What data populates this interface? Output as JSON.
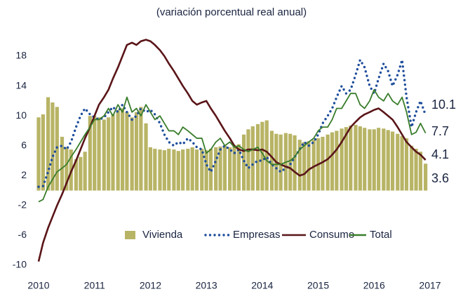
{
  "chart_data": {
    "type": "bar-line",
    "subtitle": "(variación porcentual real anual)",
    "x": [
      2010.0,
      2010.08,
      2010.17,
      2010.25,
      2010.33,
      2010.42,
      2010.5,
      2010.58,
      2010.67,
      2010.75,
      2010.83,
      2010.92,
      2011.0,
      2011.08,
      2011.17,
      2011.25,
      2011.33,
      2011.42,
      2011.5,
      2011.58,
      2011.67,
      2011.75,
      2011.83,
      2011.92,
      2012.0,
      2012.08,
      2012.17,
      2012.25,
      2012.33,
      2012.42,
      2012.5,
      2012.58,
      2012.67,
      2012.75,
      2012.83,
      2012.92,
      2013.0,
      2013.08,
      2013.17,
      2013.25,
      2013.33,
      2013.42,
      2013.5,
      2013.58,
      2013.67,
      2013.75,
      2013.83,
      2013.92,
      2014.0,
      2014.08,
      2014.17,
      2014.25,
      2014.33,
      2014.42,
      2014.5,
      2014.58,
      2014.67,
      2014.75,
      2014.83,
      2014.92,
      2015.0,
      2015.08,
      2015.17,
      2015.25,
      2015.33,
      2015.42,
      2015.5,
      2015.58,
      2015.67,
      2015.75,
      2015.83,
      2015.92,
      2016.0,
      2016.08,
      2016.17,
      2016.25,
      2016.33,
      2016.42,
      2016.5,
      2016.58,
      2016.67,
      2016.75,
      2016.83,
      2016.92
    ],
    "xlim": [
      2010,
      2017
    ],
    "xticks": [
      2010,
      2011,
      2012,
      2013,
      2014,
      2015,
      2016,
      2017
    ],
    "ylim": [
      -10,
      18
    ],
    "yticks": [
      -10,
      -6,
      -2,
      2,
      6,
      10,
      14,
      18
    ],
    "legend": "lower center",
    "series": [
      {
        "name": "Vivienda",
        "type": "bar",
        "color": "#b8b466",
        "end_label": "3.6",
        "values": [
          9.8,
          10.2,
          12.5,
          11.8,
          11.2,
          7.2,
          5.8,
          5.5,
          4.2,
          4.5,
          5.2,
          10.0,
          10.0,
          9.8,
          9.5,
          9.8,
          10.2,
          10.8,
          11.0,
          10.5,
          9.8,
          10.5,
          11.2,
          9.0,
          5.8,
          5.6,
          5.5,
          5.4,
          5.6,
          5.5,
          5.3,
          5.5,
          5.6,
          5.8,
          5.5,
          5.6,
          5.4,
          5.6,
          5.8,
          5.9,
          6.0,
          5.8,
          6.1,
          6.2,
          7.5,
          8.2,
          8.6,
          8.9,
          9.2,
          9.4,
          8.0,
          7.6,
          7.5,
          7.7,
          7.6,
          7.4,
          6.8,
          6.5,
          6.6,
          6.8,
          7.0,
          7.2,
          7.5,
          7.8,
          8.0,
          8.3,
          8.5,
          8.7,
          8.8,
          8.6,
          8.4,
          8.2,
          8.2,
          8.4,
          8.3,
          8.1,
          7.9,
          7.6,
          7.3,
          7.0,
          6.0,
          5.6,
          5.2,
          3.6
        ]
      },
      {
        "name": "Empresas",
        "type": "line",
        "dash": "dotted",
        "color": "#1f4e9b",
        "end_label": "10.1",
        "values": [
          0.5,
          0.6,
          2.5,
          4.5,
          5.8,
          6.0,
          5.5,
          6.5,
          8.5,
          10.0,
          11.0,
          10.2,
          9.8,
          9.5,
          9.8,
          10.5,
          11.2,
          10.5,
          11.5,
          10.5,
          9.5,
          10.0,
          11.0,
          10.5,
          10.8,
          10.2,
          9.0,
          7.5,
          6.5,
          6.0,
          6.5,
          6.2,
          7.0,
          6.5,
          5.8,
          5.5,
          3.5,
          2.5,
          4.0,
          5.5,
          6.0,
          5.5,
          5.0,
          5.5,
          4.0,
          3.0,
          3.5,
          4.0,
          4.0,
          4.5,
          3.5,
          3.0,
          2.5,
          3.0,
          3.5,
          4.5,
          5.5,
          6.5,
          6.0,
          6.5,
          7.5,
          9.0,
          10.0,
          11.0,
          12.5,
          14.0,
          13.0,
          13.5,
          15.5,
          17.5,
          16.5,
          14.0,
          13.0,
          15.0,
          17.0,
          16.0,
          14.0,
          15.5,
          17.5,
          12.5,
          8.5,
          10.5,
          12.0,
          10.1
        ]
      },
      {
        "name": "Consumo",
        "type": "line",
        "dash": "solid",
        "color": "#5a1518",
        "end_label": "4.1",
        "values": [
          -9.5,
          -7.0,
          -5.0,
          -3.5,
          -2.0,
          -0.5,
          1.0,
          2.5,
          4.0,
          5.5,
          7.0,
          8.5,
          10.0,
          11.5,
          12.5,
          13.5,
          15.0,
          16.5,
          18.0,
          19.5,
          19.8,
          19.5,
          20.0,
          20.2,
          20.0,
          19.5,
          18.8,
          18.0,
          17.0,
          16.0,
          15.0,
          14.0,
          13.0,
          12.0,
          11.5,
          11.8,
          12.0,
          11.0,
          10.0,
          9.0,
          8.0,
          7.0,
          6.0,
          5.5,
          5.3,
          5.5,
          5.5,
          5.4,
          5.5,
          5.2,
          4.5,
          3.8,
          3.5,
          3.2,
          3.0,
          2.5,
          2.0,
          2.2,
          2.8,
          3.2,
          3.5,
          3.8,
          4.2,
          4.8,
          5.5,
          6.5,
          7.5,
          8.5,
          9.2,
          9.8,
          10.2,
          10.5,
          10.8,
          11.0,
          10.5,
          10.0,
          9.5,
          8.5,
          7.5,
          6.5,
          5.8,
          5.2,
          4.8,
          4.1
        ]
      },
      {
        "name": "Total",
        "type": "line",
        "dash": "solid",
        "color": "#3a7d2c",
        "end_label": "7.7",
        "values": [
          -1.5,
          -1.2,
          0.5,
          1.5,
          2.5,
          3.0,
          3.5,
          4.5,
          5.5,
          6.5,
          7.5,
          8.5,
          9.5,
          9.5,
          10.0,
          11.0,
          10.0,
          11.5,
          10.5,
          12.5,
          10.5,
          11.0,
          10.0,
          11.5,
          10.5,
          9.5,
          10.0,
          9.0,
          8.0,
          8.0,
          7.5,
          8.5,
          8.0,
          7.5,
          7.0,
          7.0,
          5.0,
          5.5,
          6.5,
          7.0,
          6.0,
          6.5,
          5.8,
          6.0,
          5.5,
          5.2,
          5.5,
          5.8,
          5.0,
          4.0,
          3.5,
          3.5,
          3.5,
          3.8,
          4.0,
          4.5,
          5.5,
          6.0,
          6.5,
          7.0,
          8.0,
          8.5,
          8.5,
          9.5,
          11.0,
          11.0,
          12.0,
          13.0,
          13.0,
          11.5,
          11.0,
          12.0,
          13.5,
          12.5,
          12.0,
          13.0,
          12.0,
          11.5,
          12.5,
          10.5,
          7.5,
          7.8,
          9.0,
          7.7
        ]
      }
    ]
  }
}
